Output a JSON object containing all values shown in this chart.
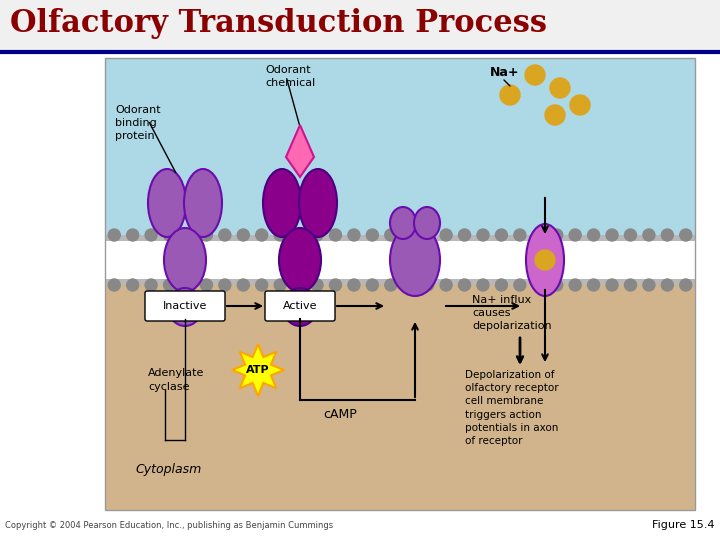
{
  "title": "Olfactory Transduction Process",
  "title_color": "#8B0000",
  "title_fontsize": 22,
  "bg_color": "#FFFFFF",
  "header_line_color": "#00008B",
  "cytoplasm_color": "#D2B48C",
  "sky_color": "#ADD8E6",
  "receptor_color": "#9B59B6",
  "receptor_color2": "#8B008B",
  "odorant_color": "#FF69B4",
  "na_color": "#DAA520",
  "label_inactive": "Inactive",
  "label_active": "Active",
  "label_atp": "ATP",
  "label_camp": "cAMP",
  "label_na_influx": "Na+ influx\ncauses\ndepolarization",
  "label_depol": "Depolarization of\nolfactory receptor\ncell membrane\ntriggers action\npotentials in axon\nof receptor",
  "label_cytoplasm": "Cytoplasm",
  "label_odorant_binding": "Odorant\nbinding\nprotein",
  "label_odorant_chemical": "Odorant\nchemical",
  "label_na": "Na+",
  "label_adenylate": "Adenylate\ncyclase",
  "label_figure": "Figure 15.4",
  "label_copyright": "Copyright © 2004 Pearson Education, Inc., publishing as Benjamin Cummings"
}
